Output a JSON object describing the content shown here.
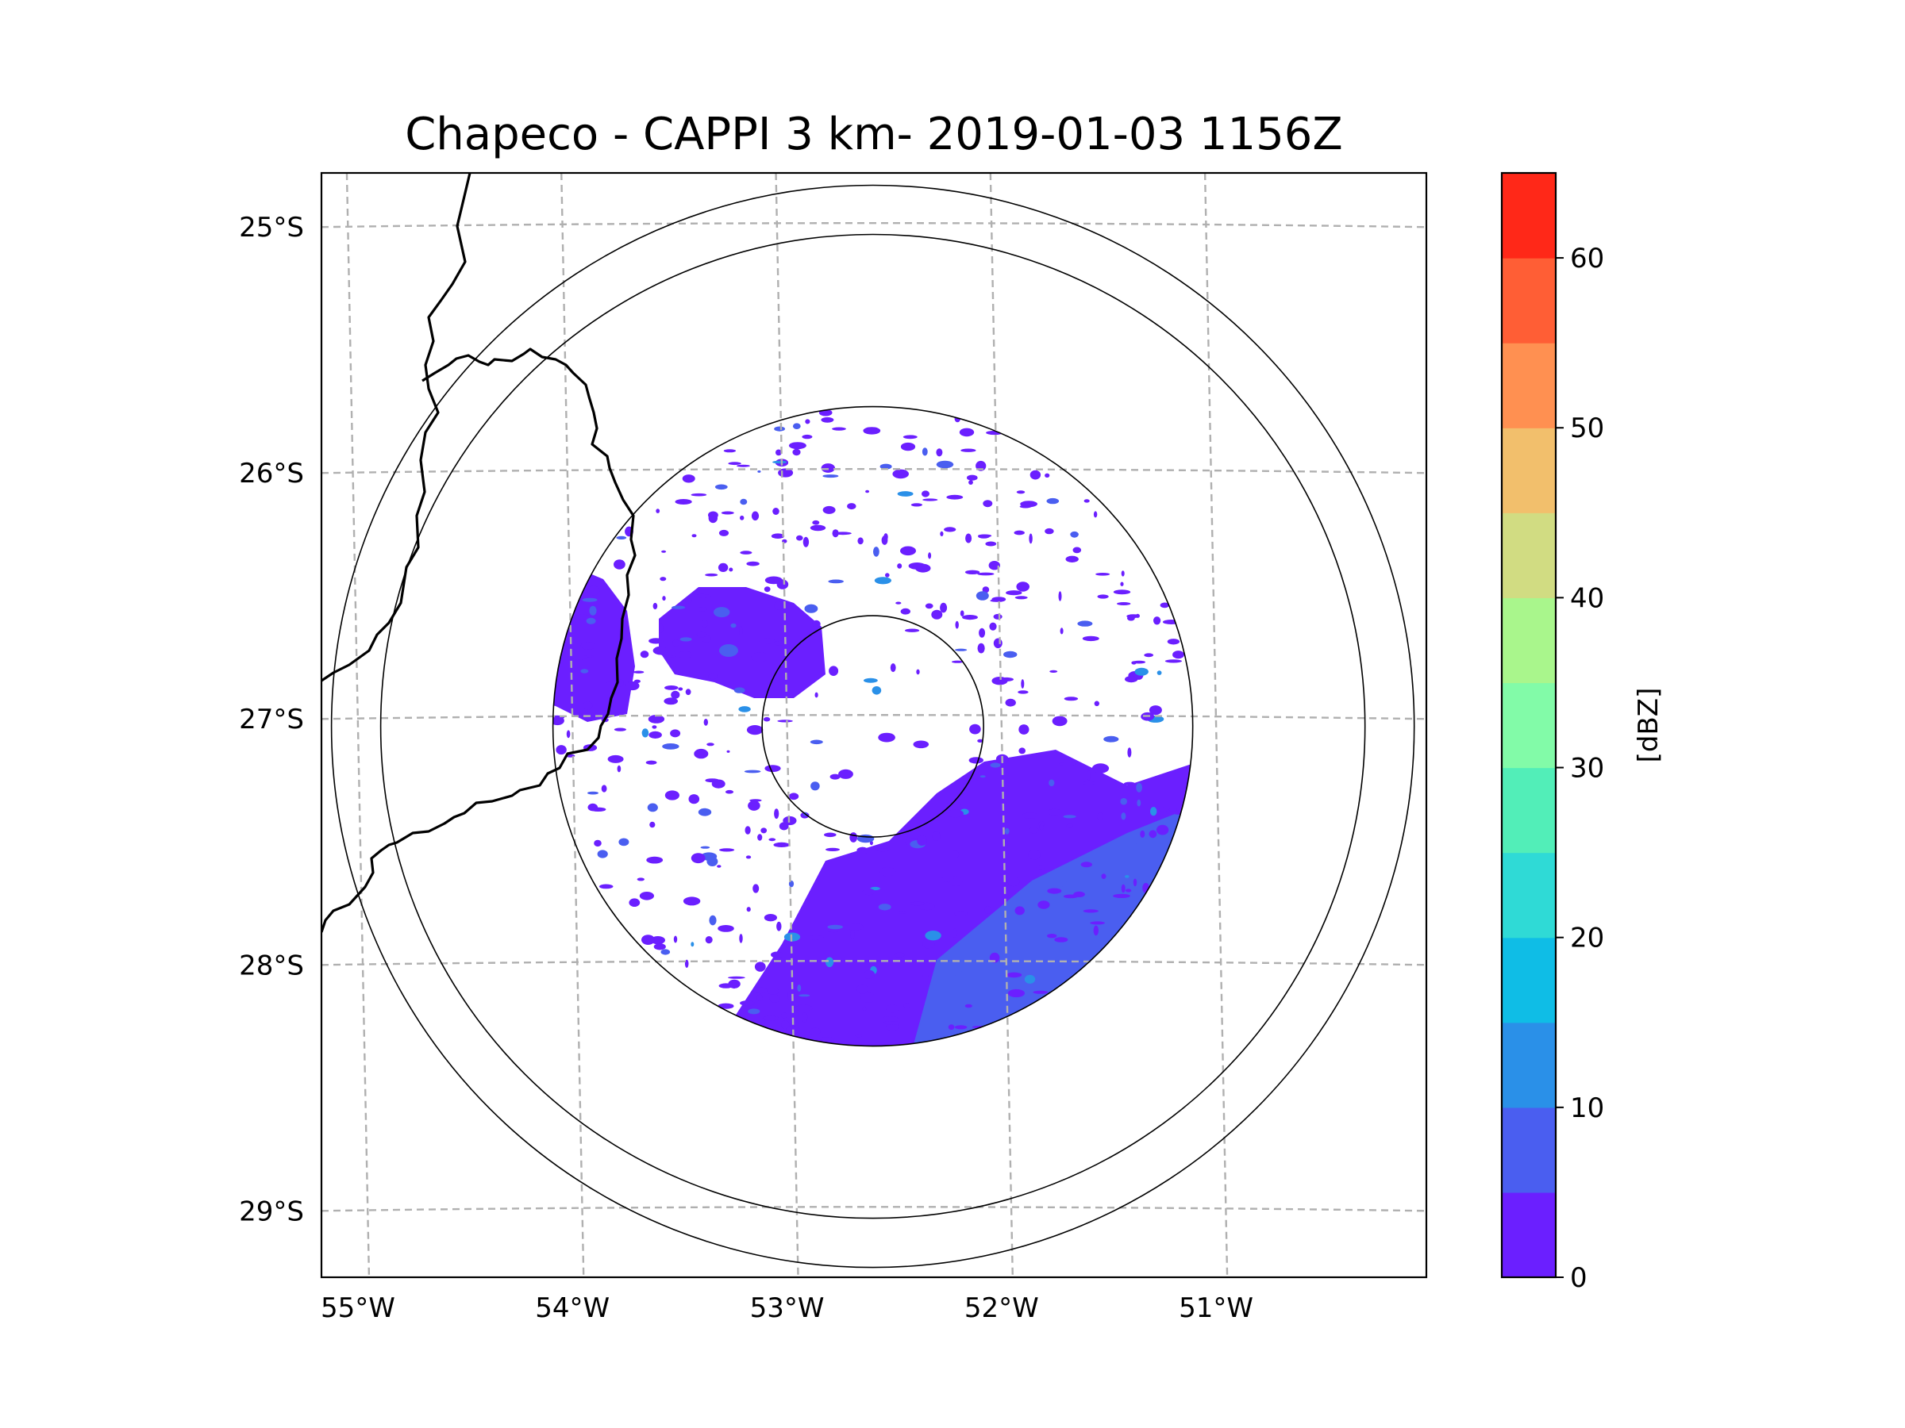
{
  "title": "Chapeco - CAPPI 3 km- 2019-01-03 1156Z",
  "map": {
    "radar_name": "Chapeco",
    "product": "CAPPI 3 km",
    "timestamp": "2019-01-03 1156Z",
    "center_lon": -52.6,
    "center_lat": -27.03,
    "lon_range": [
      -55.17,
      -50.02
    ],
    "lat_range": [
      -29.27,
      -24.78
    ],
    "range_rings_deg": [
      0.45,
      1.3,
      2.0,
      2.2
    ],
    "lat_ticks": [
      {
        "value": -25,
        "label": "25°S"
      },
      {
        "value": -26,
        "label": "26°S"
      },
      {
        "value": -27,
        "label": "27°S"
      },
      {
        "value": -28,
        "label": "28°S"
      },
      {
        "value": -29,
        "label": "29°S"
      }
    ],
    "lon_ticks": [
      {
        "value": -55,
        "label": "55°W"
      },
      {
        "value": -54,
        "label": "54°W"
      },
      {
        "value": -53,
        "label": "53°W"
      },
      {
        "value": -52,
        "label": "52°W"
      },
      {
        "value": -51,
        "label": "51°W"
      }
    ]
  },
  "colorbar": {
    "label": "[dBZ]",
    "min": 0,
    "max": 65,
    "step": 5,
    "ticks": [
      {
        "value": 0,
        "label": "0"
      },
      {
        "value": 10,
        "label": "10"
      },
      {
        "value": 20,
        "label": "20"
      },
      {
        "value": 30,
        "label": "30"
      },
      {
        "value": 40,
        "label": "40"
      },
      {
        "value": 50,
        "label": "50"
      },
      {
        "value": 60,
        "label": "60"
      }
    ],
    "colors": [
      "#6b1fff",
      "#4a5ef0",
      "#2a90e8",
      "#0fbde6",
      "#2fdad6",
      "#52eeb8",
      "#82fba8",
      "#a9f68c",
      "#d1dc82",
      "#f2bf6c",
      "#ff9051",
      "#ff5e35",
      "#ff2818"
    ]
  },
  "colors": {
    "weak_echo": "#6b1fff",
    "moderate_echo": "#4a5ef0",
    "stronger_echo": "#2a90e8"
  }
}
